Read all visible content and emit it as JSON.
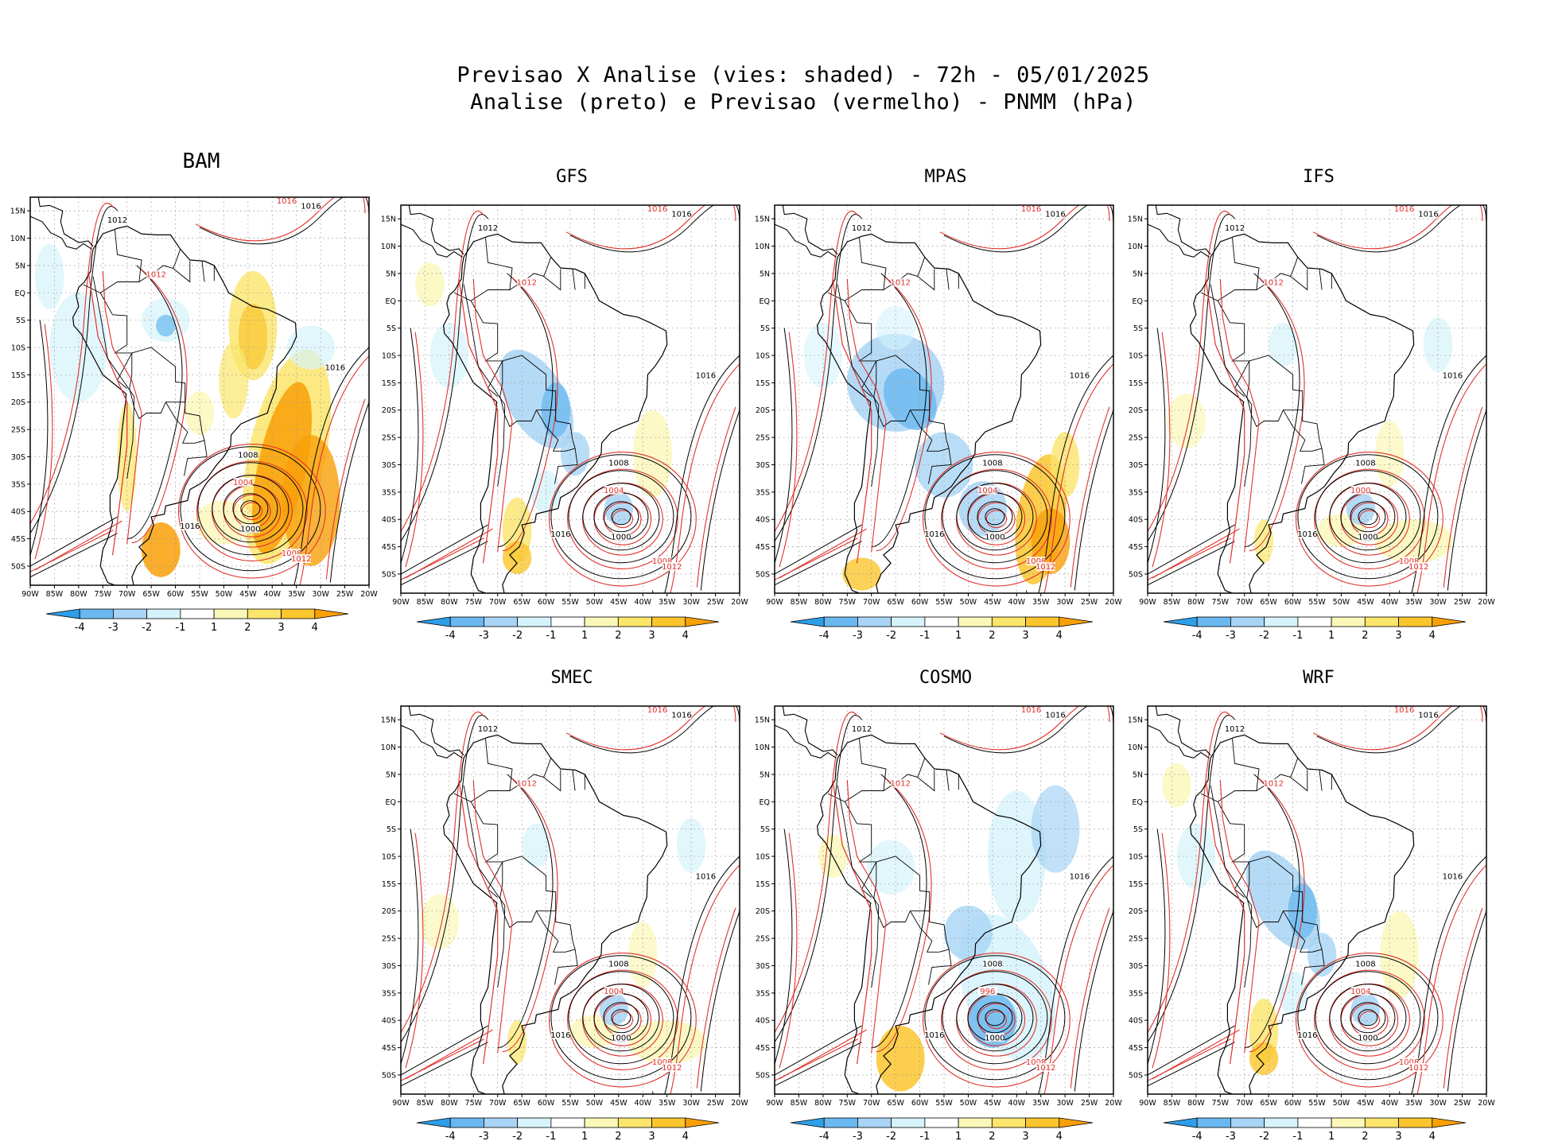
{
  "title": {
    "line1": "Previsao X Analise (vies: shaded) - 72h - 05/01/2025",
    "line2": "Analise (preto) e Previsao (vermelho) - PNMM (hPa)"
  },
  "lat_labels": [
    "15N",
    "10N",
    "5N",
    "EQ",
    "5S",
    "10S",
    "15S",
    "20S",
    "25S",
    "30S",
    "35S",
    "40S",
    "45S",
    "50S"
  ],
  "lon_labels": [
    "90W",
    "85W",
    "80W",
    "75W",
    "70W",
    "65W",
    "60W",
    "55W",
    "50W",
    "45W",
    "40W",
    "35W",
    "30W",
    "25W",
    "20W"
  ],
  "colorbar": {
    "tick_labels": [
      "-4",
      "-3",
      "-2",
      "-1",
      "1",
      "2",
      "3",
      "4"
    ],
    "colors": {
      "neg4": "#2e9ee8",
      "neg3": "#6ab8f0",
      "neg2": "#a8d4f5",
      "neg1": "#d6f3fb",
      "zero": "#ffffff",
      "pos1": "#fbf7b8",
      "pos2": "#fbe56b",
      "pos3": "#fbc52e",
      "pos4": "#f9a007"
    }
  },
  "colors": {
    "analysis": "#000000",
    "forecast": "#e0322c",
    "coast": "#000000",
    "grid": "#9a9a9a"
  },
  "panels": [
    {
      "name": "BAM",
      "low_analysis": "1000",
      "low_forecast": "1004",
      "isobars": [
        "1012",
        "1016",
        "1008",
        "1004",
        "1000"
      ],
      "bias": "positive"
    },
    {
      "name": "GFS",
      "low_analysis": "1000",
      "low_forecast": "1004",
      "isobars": [
        "1012",
        "1016",
        "1008",
        "1004",
        "1000"
      ],
      "bias": "mixed"
    },
    {
      "name": "MPAS",
      "low_analysis": "1000",
      "low_forecast": "1004",
      "isobars": [
        "1012",
        "1016",
        "1008",
        "1004",
        "1000"
      ],
      "bias": "negative-west"
    },
    {
      "name": "IFS",
      "low_analysis": "1000",
      "low_forecast": "1000",
      "isobars": [
        "1012",
        "1016",
        "1008",
        "1004",
        "1000"
      ],
      "bias": "light"
    },
    {
      "name": "SMEC",
      "low_analysis": "1000",
      "low_forecast": "1004",
      "isobars": [
        "1012",
        "1016",
        "1008",
        "1004",
        "1000"
      ],
      "bias": "light"
    },
    {
      "name": "COSMO",
      "low_analysis": "1000",
      "low_forecast": "996",
      "isobars": [
        "1012",
        "1016",
        "1008",
        "1004",
        "1000"
      ],
      "bias": "negative"
    },
    {
      "name": "WRF",
      "low_analysis": "1000",
      "low_forecast": "1004",
      "isobars": [
        "1012",
        "1016",
        "1008",
        "1004",
        "1000"
      ],
      "bias": "mixed"
    }
  ]
}
